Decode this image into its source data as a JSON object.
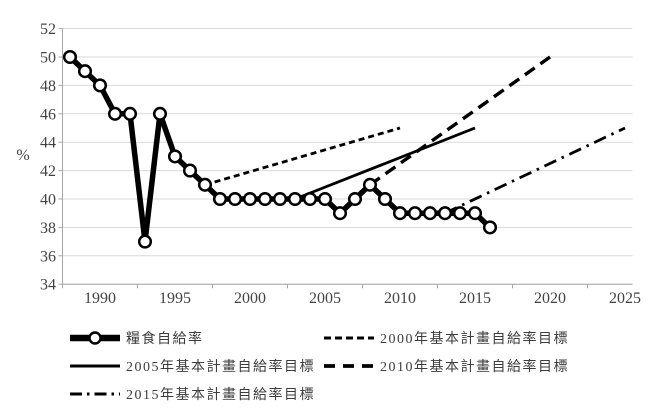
{
  "chart_data": {
    "type": "line",
    "title": "",
    "ylabel": "%",
    "xlabel": "",
    "ylim": [
      34,
      52
    ],
    "yticks": [
      34,
      36,
      38,
      40,
      42,
      44,
      46,
      48,
      50,
      52
    ],
    "xlim": [
      1987.5,
      2025.5
    ],
    "xticks": [
      1990,
      1995,
      2000,
      2005,
      2010,
      2015,
      2020,
      2025
    ],
    "grid": "horizontal",
    "legend_position": "bottom",
    "colors": {
      "line": "#000000",
      "grid": "#d9d9d9",
      "axis": "#a6a6a6",
      "text": "#434343",
      "background": "#ffffff"
    },
    "series": [
      {
        "key": "ssr",
        "name": "糧食自給率",
        "style": "main",
        "x": [
          1988,
          1989,
          1990,
          1991,
          1992,
          1993,
          1994,
          1995,
          1996,
          1997,
          1998,
          1999,
          2000,
          2001,
          2002,
          2003,
          2004,
          2005,
          2006,
          2007,
          2008,
          2009,
          2010,
          2011,
          2012,
          2013,
          2014,
          2015,
          2016
        ],
        "y": [
          50,
          49,
          48,
          46,
          46,
          37,
          46,
          43,
          42,
          41,
          40,
          40,
          40,
          40,
          40,
          40,
          40,
          40,
          39,
          40,
          41,
          40,
          39,
          39,
          39,
          39,
          39,
          39,
          38
        ]
      },
      {
        "key": "plan2000",
        "name": "2000年基本計畫自給率目標",
        "style": "short-dash",
        "x": [
          1997,
          2010
        ],
        "y": [
          41,
          45
        ]
      },
      {
        "key": "plan2005",
        "name": "2005年基本計畫自給率目標",
        "style": "solid",
        "x": [
          2003,
          2015
        ],
        "y": [
          40,
          45
        ]
      },
      {
        "key": "plan2010",
        "name": "2010年基本計畫自給率目標",
        "style": "long-dash",
        "x": [
          2008,
          2020
        ],
        "y": [
          41,
          50
        ]
      },
      {
        "key": "plan2015",
        "name": "2015年基本計畫自給率目標",
        "style": "dash-dot",
        "x": [
          2013,
          2025
        ],
        "y": [
          39,
          45
        ]
      }
    ],
    "legend_rows": [
      [
        "ssr",
        "plan2000"
      ],
      [
        "plan2005",
        "plan2010"
      ],
      [
        "plan2015"
      ]
    ]
  }
}
